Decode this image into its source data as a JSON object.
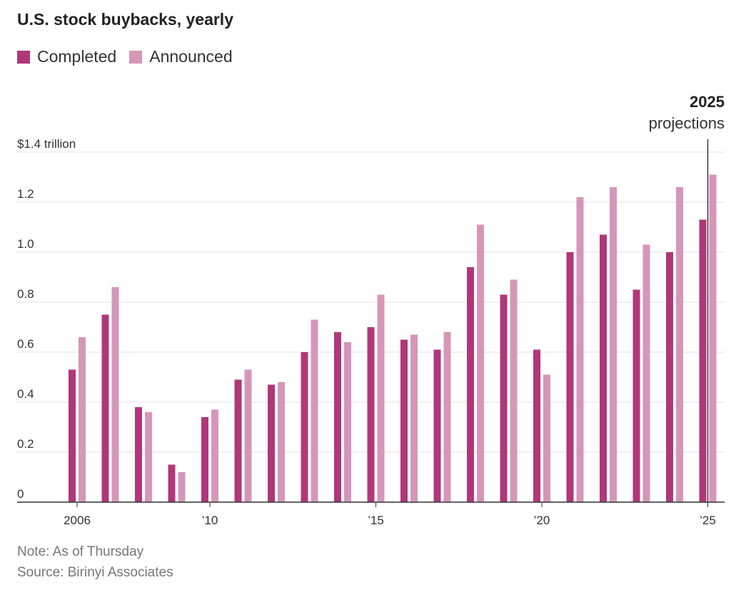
{
  "colors": {
    "completed": "#b0377a",
    "announced": "#d597b8",
    "grid": "#e1e1e1",
    "axis": "#333333"
  },
  "chart_data": {
    "type": "bar",
    "title": "U.S. stock buybacks, yearly",
    "xlabel": "",
    "ylabel": "",
    "ylim": [
      0,
      1.4
    ],
    "y_ticks": [
      0,
      0.2,
      0.4,
      0.6,
      0.8,
      1.0,
      1.2,
      1.4
    ],
    "y_tick_labels": [
      "0",
      "0.2",
      "0.4",
      "0.6",
      "0.8",
      "1.0",
      "1.2",
      "$1.4 trillion"
    ],
    "categories": [
      "2006",
      "2007",
      "2008",
      "2009",
      "2010",
      "2011",
      "2012",
      "2013",
      "2014",
      "2015",
      "2016",
      "2017",
      "2018",
      "2019",
      "2020",
      "2021",
      "2022",
      "2023",
      "2024",
      "2025"
    ],
    "x_tick_labels": [
      {
        "category": "2006",
        "label": "2006"
      },
      {
        "category": "2010",
        "label": "’10"
      },
      {
        "category": "2015",
        "label": "’15"
      },
      {
        "category": "2020",
        "label": "’20"
      },
      {
        "category": "2025",
        "label": "’25"
      }
    ],
    "series": [
      {
        "name": "Completed",
        "values": [
          0.53,
          0.75,
          0.38,
          0.15,
          0.34,
          0.49,
          0.47,
          0.6,
          0.68,
          0.7,
          0.65,
          0.61,
          0.94,
          0.83,
          0.61,
          1.0,
          1.07,
          0.85,
          1.0,
          1.13
        ]
      },
      {
        "name": "Announced",
        "values": [
          0.66,
          0.86,
          0.36,
          0.12,
          0.37,
          0.53,
          0.48,
          0.73,
          0.64,
          0.83,
          0.67,
          0.68,
          1.11,
          0.89,
          0.51,
          1.22,
          1.26,
          1.03,
          1.26,
          1.31
        ]
      }
    ],
    "legend": "top-left",
    "annotation": {
      "category": "2025",
      "title": "2025",
      "text": "projections"
    },
    "grid": true
  },
  "notes": {
    "note": "Note: As of Thursday",
    "source": "Source: Birinyi Associates"
  }
}
